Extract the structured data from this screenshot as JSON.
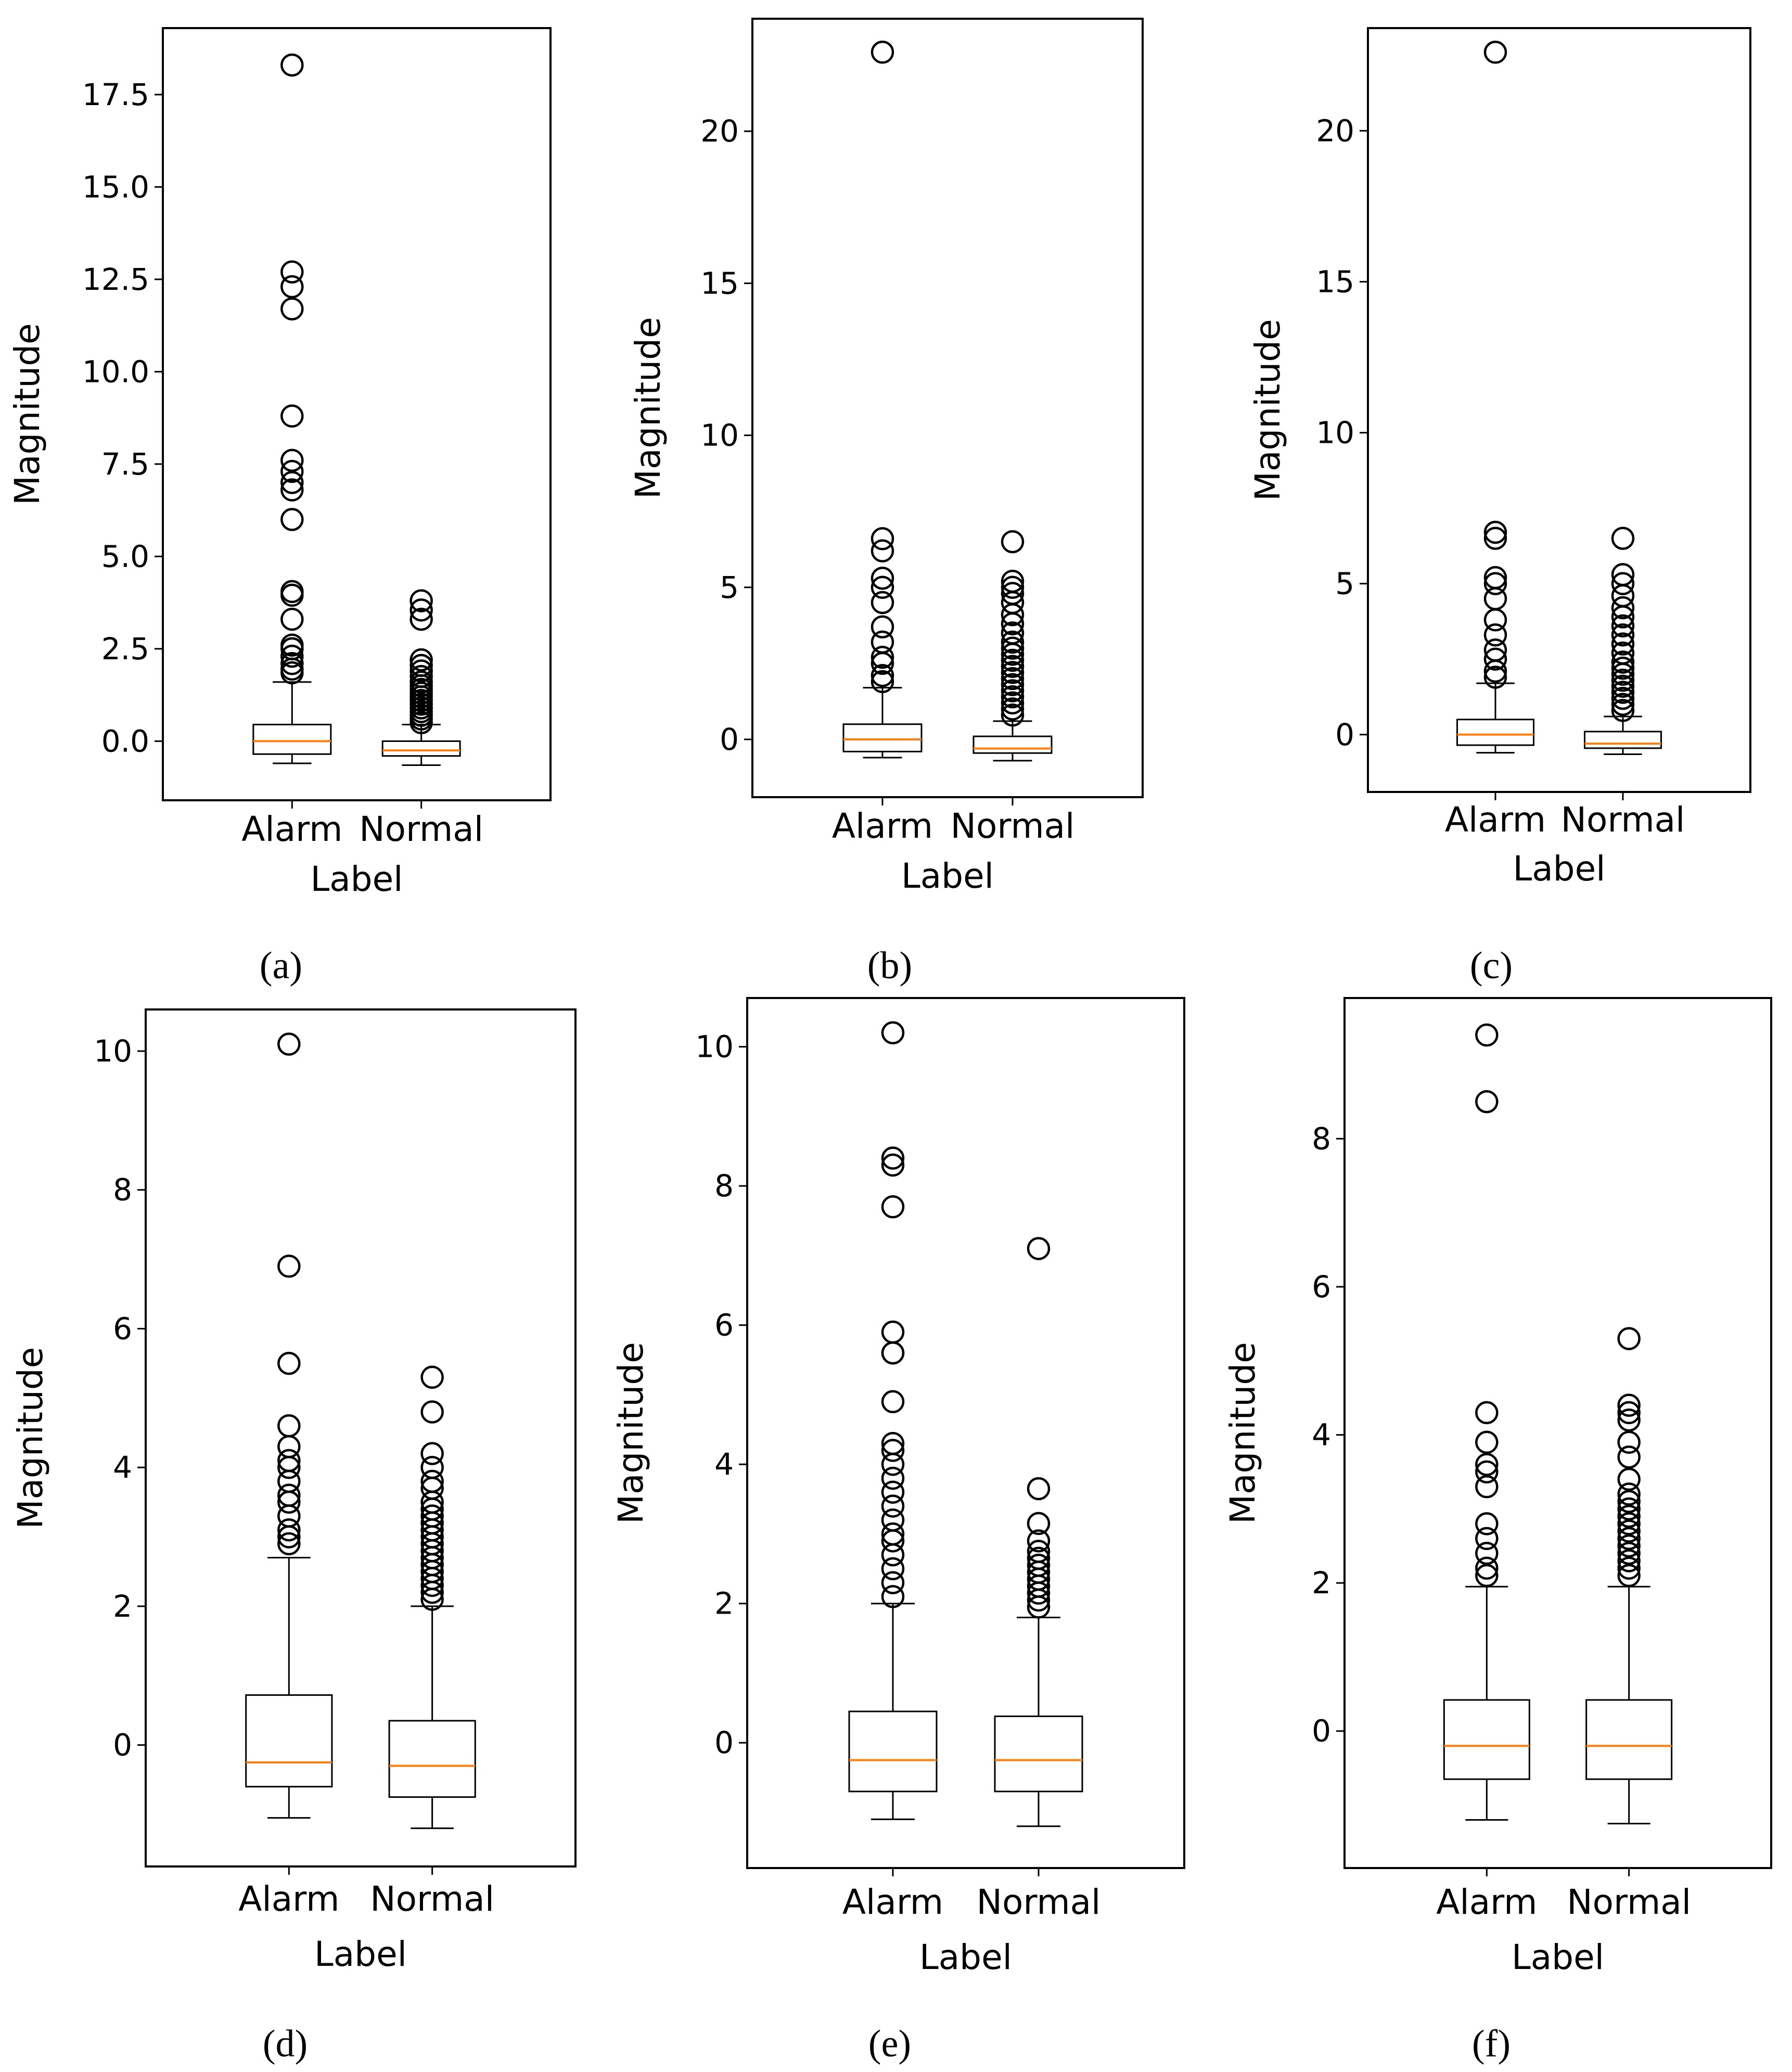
{
  "figure": {
    "panel_captions": [
      "(a)",
      "(b)",
      "(c)",
      "(d)",
      "(e)",
      "(f)"
    ]
  },
  "colors": {
    "median": "#ff7f0e",
    "box": "#000000",
    "flier": "#000000"
  },
  "chart_data": [
    {
      "panel": "(a)",
      "type": "boxplot",
      "xlabel": "Label",
      "ylabel": "Magnitude",
      "ylim": [
        -1.6,
        19.3
      ],
      "yticks": [
        0.0,
        2.5,
        5.0,
        7.5,
        10.0,
        12.5,
        15.0,
        17.5
      ],
      "ytick_labels": [
        "0.0",
        "2.5",
        "5.0",
        "7.5",
        "10.0",
        "12.5",
        "15.0",
        "17.5"
      ],
      "categories": [
        "Alarm",
        "Normal"
      ],
      "boxes": [
        {
          "category": "Alarm",
          "whisker_low": -0.6,
          "q1": -0.35,
          "median": 0.0,
          "q3": 0.45,
          "whisker_high": 1.6,
          "fliers": [
            1.85,
            1.95,
            2.1,
            2.3,
            2.5,
            2.6,
            3.3,
            3.95,
            4.05,
            6.0,
            6.8,
            7.0,
            7.3,
            7.6,
            8.8,
            11.7,
            12.3,
            12.7,
            18.3
          ]
        },
        {
          "category": "Normal",
          "whisker_low": -0.65,
          "q1": -0.4,
          "median": -0.25,
          "q3": 0.0,
          "whisker_high": 0.45,
          "fliers": [
            0.5,
            0.6,
            0.7,
            0.8,
            0.9,
            1.0,
            1.1,
            1.2,
            1.3,
            1.4,
            1.5,
            1.6,
            1.75,
            1.9,
            2.05,
            2.2,
            3.3,
            3.55,
            3.8
          ]
        }
      ]
    },
    {
      "panel": "(b)",
      "type": "boxplot",
      "xlabel": "Label",
      "ylabel": "Magnitude",
      "ylim": [
        -1.9,
        23.7
      ],
      "yticks": [
        0,
        5,
        10,
        15,
        20
      ],
      "ytick_labels": [
        "0",
        "5",
        "10",
        "15",
        "20"
      ],
      "categories": [
        "Alarm",
        "Normal"
      ],
      "boxes": [
        {
          "category": "Alarm",
          "whisker_low": -0.6,
          "q1": -0.4,
          "median": 0.0,
          "q3": 0.5,
          "whisker_high": 1.7,
          "fliers": [
            1.9,
            2.1,
            2.5,
            2.7,
            3.2,
            3.7,
            4.5,
            5.0,
            5.3,
            6.2,
            6.6,
            22.6
          ]
        },
        {
          "category": "Normal",
          "whisker_low": -0.7,
          "q1": -0.45,
          "median": -0.3,
          "q3": 0.1,
          "whisker_high": 0.6,
          "fliers": [
            0.8,
            1.0,
            1.2,
            1.4,
            1.6,
            1.8,
            2.0,
            2.2,
            2.4,
            2.6,
            2.8,
            3.0,
            3.2,
            3.5,
            3.8,
            4.1,
            4.5,
            4.8,
            5.0,
            5.2,
            6.5
          ]
        }
      ]
    },
    {
      "panel": "(c)",
      "type": "boxplot",
      "xlabel": "Label",
      "ylabel": "Magnitude",
      "ylim": [
        -1.9,
        23.4
      ],
      "yticks": [
        0,
        5,
        10,
        15,
        20
      ],
      "ytick_labels": [
        "0",
        "5",
        "10",
        "15",
        "20"
      ],
      "categories": [
        "Alarm",
        "Normal"
      ],
      "boxes": [
        {
          "category": "Alarm",
          "whisker_low": -0.6,
          "q1": -0.35,
          "median": 0.0,
          "q3": 0.5,
          "whisker_high": 1.7,
          "fliers": [
            1.9,
            2.1,
            2.5,
            2.8,
            3.3,
            3.8,
            4.5,
            5.0,
            5.2,
            6.5,
            6.7,
            22.6
          ]
        },
        {
          "category": "Normal",
          "whisker_low": -0.65,
          "q1": -0.45,
          "median": -0.3,
          "q3": 0.1,
          "whisker_high": 0.6,
          "fliers": [
            0.8,
            1.0,
            1.2,
            1.4,
            1.6,
            1.8,
            2.0,
            2.2,
            2.4,
            2.7,
            3.0,
            3.3,
            3.6,
            3.9,
            4.2,
            4.6,
            5.0,
            5.3,
            6.5
          ]
        }
      ]
    },
    {
      "panel": "(d)",
      "type": "boxplot",
      "xlabel": "Label",
      "ylabel": "Magnitude",
      "ylim": [
        -1.75,
        10.6
      ],
      "yticks": [
        0,
        2,
        4,
        6,
        8,
        10
      ],
      "ytick_labels": [
        "0",
        "2",
        "4",
        "6",
        "8",
        "10"
      ],
      "categories": [
        "Alarm",
        "Normal"
      ],
      "boxes": [
        {
          "category": "Alarm",
          "whisker_low": -1.05,
          "q1": -0.6,
          "median": -0.25,
          "q3": 0.72,
          "whisker_high": 2.7,
          "fliers": [
            2.9,
            3.0,
            3.1,
            3.3,
            3.5,
            3.6,
            3.8,
            4.0,
            4.1,
            4.3,
            4.6,
            5.5,
            6.9,
            10.1
          ]
        },
        {
          "category": "Normal",
          "whisker_low": -1.2,
          "q1": -0.75,
          "median": -0.3,
          "q3": 0.35,
          "whisker_high": 2.0,
          "fliers": [
            2.1,
            2.2,
            2.3,
            2.4,
            2.5,
            2.6,
            2.7,
            2.8,
            2.9,
            3.0,
            3.1,
            3.2,
            3.3,
            3.4,
            3.5,
            3.7,
            3.8,
            4.0,
            4.2,
            4.8,
            5.3
          ]
        }
      ]
    },
    {
      "panel": "(e)",
      "type": "boxplot",
      "xlabel": "Label",
      "ylabel": "Magnitude",
      "ylim": [
        -1.8,
        10.7
      ],
      "yticks": [
        0,
        2,
        4,
        6,
        8,
        10
      ],
      "ytick_labels": [
        "0",
        "2",
        "4",
        "6",
        "8",
        "10"
      ],
      "categories": [
        "Alarm",
        "Normal"
      ],
      "boxes": [
        {
          "category": "Alarm",
          "whisker_low": -1.1,
          "q1": -0.7,
          "median": -0.25,
          "q3": 0.45,
          "whisker_high": 2.0,
          "fliers": [
            2.1,
            2.3,
            2.5,
            2.7,
            2.9,
            3.0,
            3.2,
            3.4,
            3.6,
            3.8,
            4.0,
            4.2,
            4.3,
            4.9,
            5.6,
            5.6,
            5.9,
            7.7,
            8.3,
            8.4,
            10.2
          ]
        },
        {
          "category": "Normal",
          "whisker_low": -1.2,
          "q1": -0.7,
          "median": -0.25,
          "q3": 0.38,
          "whisker_high": 1.8,
          "fliers": [
            1.95,
            2.05,
            2.15,
            2.25,
            2.35,
            2.45,
            2.55,
            2.65,
            2.75,
            2.9,
            3.15,
            3.65,
            7.1
          ]
        }
      ]
    },
    {
      "panel": "(f)",
      "type": "boxplot",
      "xlabel": "Label",
      "ylabel": "Magnitude",
      "ylim": [
        -1.85,
        9.9
      ],
      "yticks": [
        0,
        2,
        4,
        6,
        8
      ],
      "ytick_labels": [
        "0",
        "2",
        "4",
        "6",
        "8"
      ],
      "categories": [
        "Alarm",
        "Normal"
      ],
      "boxes": [
        {
          "category": "Alarm",
          "whisker_low": -1.2,
          "q1": -0.65,
          "median": -0.2,
          "q3": 0.42,
          "whisker_high": 1.95,
          "fliers": [
            2.1,
            2.2,
            2.4,
            2.6,
            2.8,
            3.3,
            3.5,
            3.6,
            3.9,
            4.3,
            8.5,
            9.4
          ]
        },
        {
          "category": "Normal",
          "whisker_low": -1.25,
          "q1": -0.65,
          "median": -0.2,
          "q3": 0.42,
          "whisker_high": 1.95,
          "fliers": [
            2.1,
            2.2,
            2.3,
            2.4,
            2.5,
            2.6,
            2.7,
            2.8,
            2.9,
            3.0,
            3.1,
            3.2,
            3.4,
            3.7,
            3.9,
            4.2,
            4.3,
            4.4,
            5.3
          ]
        }
      ]
    }
  ]
}
